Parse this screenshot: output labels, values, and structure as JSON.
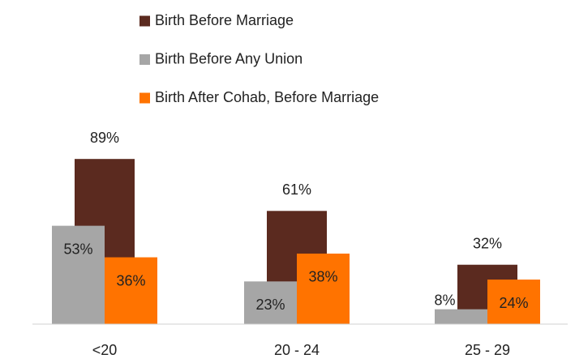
{
  "chart_data": {
    "type": "bar",
    "categories": [
      "<20",
      "20 - 24",
      "25 - 29"
    ],
    "ylim": [
      0,
      100
    ],
    "series": [
      {
        "name": "Birth Before Marriage",
        "color": "#5b2a1f",
        "values": [
          89,
          61,
          32
        ],
        "value_labels": [
          "89%",
          "61%",
          "32%"
        ]
      },
      {
        "name": "Birth Before Any Union",
        "color": "#a6a6a6",
        "values": [
          53,
          23,
          8
        ],
        "value_labels": [
          "53%",
          "23%",
          "8%"
        ]
      },
      {
        "name": "Birth After Cohab, Before Marriage",
        "color": "#ff7300",
        "values": [
          36,
          38,
          24
        ],
        "value_labels": [
          "36%",
          "38%",
          "24%"
        ]
      }
    ]
  }
}
